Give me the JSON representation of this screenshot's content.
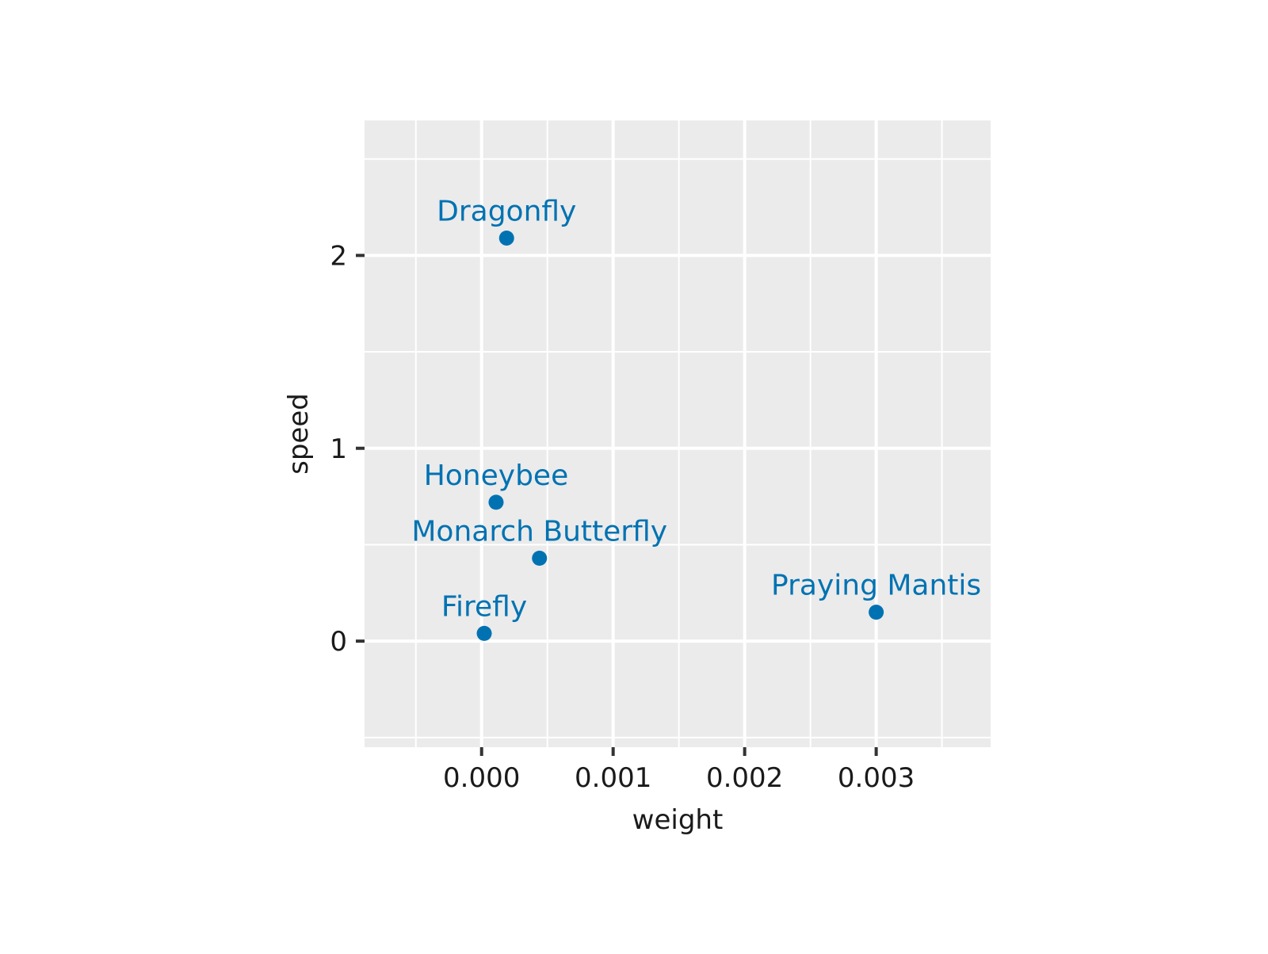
{
  "chart_data": {
    "type": "scatter",
    "title": "",
    "xlabel": "weight",
    "ylabel": "speed",
    "xlim": [
      -0.00089,
      0.00387
    ],
    "ylim": [
      -0.55,
      2.7
    ],
    "x_ticks": [
      0.0,
      0.001,
      0.002,
      0.003
    ],
    "x_tick_labels": [
      "0.000",
      "0.001",
      "0.002",
      "0.003"
    ],
    "x_minor_ticks": [
      -0.0005,
      0.0005,
      0.0015,
      0.0025,
      0.0035
    ],
    "y_ticks": [
      0,
      1,
      2
    ],
    "y_tick_labels": [
      "0",
      "1",
      "2"
    ],
    "y_minor_ticks": [
      -0.5,
      0.5,
      1.5,
      2.5
    ],
    "grid": true,
    "legend": "none",
    "points": [
      {
        "label": "Dragonfly",
        "x": 0.00019,
        "y": 2.09
      },
      {
        "label": "Honeybee",
        "x": 0.00011,
        "y": 0.72
      },
      {
        "label": "Monarch Butterfly",
        "x": 0.00044,
        "y": 0.43
      },
      {
        "label": "Firefly",
        "x": 2e-05,
        "y": 0.04
      },
      {
        "label": "Praying Mantis",
        "x": 0.003,
        "y": 0.15
      }
    ]
  },
  "colors": {
    "panel_background": "#ebebeb",
    "grid_major": "#ffffff",
    "grid_minor": "#ffffff",
    "point": "#0072b2",
    "label": "#0072b2",
    "axis_text": "#1a1a1a",
    "tick_mark": "#333333"
  }
}
